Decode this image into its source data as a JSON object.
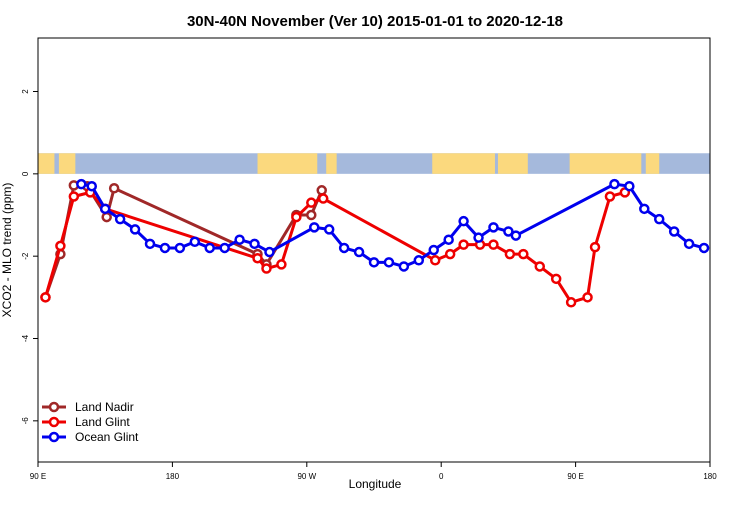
{
  "chart_data": {
    "type": "line",
    "title": "30N-40N November (Ver 10)   2015-01-01 to 2020-12-18",
    "xlabel": "Longitude",
    "ylabel": "XCO2 - MLO trend (ppm)",
    "xlim": [
      90,
      540
    ],
    "ylim": [
      -7,
      3.3
    ],
    "xticks": [
      {
        "value": 90,
        "label": "90 E"
      },
      {
        "value": 180,
        "label": "180"
      },
      {
        "value": 270,
        "label": "90 W"
      },
      {
        "value": 360,
        "label": "0"
      },
      {
        "value": 450,
        "label": "90 E"
      },
      {
        "value": 540,
        "label": "180"
      }
    ],
    "yticks": [
      {
        "value": -6,
        "label": "-6"
      },
      {
        "value": -4,
        "label": "-4"
      },
      {
        "value": -2,
        "label": "-2"
      },
      {
        "value": 0,
        "label": "0"
      },
      {
        "value": 2,
        "label": "2"
      }
    ],
    "land_ocean_strip": {
      "ymin": 0,
      "ymax": 0.5,
      "ocean_color": "#a5b9dc",
      "land_color": "#fbd97e",
      "land_ranges": [
        [
          90,
          101
        ],
        [
          104,
          115
        ],
        [
          237,
          277
        ],
        [
          283,
          290
        ],
        [
          354,
          396
        ],
        [
          398,
          418
        ],
        [
          446,
          494
        ],
        [
          497,
          506
        ]
      ]
    },
    "series": [
      {
        "name": "Land Nadir",
        "color": "#a02828",
        "x": [
          95,
          105,
          114,
          123,
          136,
          141,
          237,
          243,
          263,
          273,
          280
        ],
        "y": [
          -3.0,
          -1.95,
          -0.28,
          -0.3,
          -1.05,
          -0.35,
          -1.95,
          -2.2,
          -1.0,
          -1.0,
          -0.4
        ]
      },
      {
        "name": "Land Glint",
        "color": "#ee0000",
        "x": [
          95,
          105,
          114,
          125,
          135,
          237,
          243,
          253,
          263,
          273,
          281,
          356,
          366,
          375,
          386,
          395,
          406,
          415,
          426,
          437,
          447,
          458,
          463,
          473,
          483
        ],
        "y": [
          -3.0,
          -1.75,
          -0.55,
          -0.45,
          -0.85,
          -2.05,
          -2.3,
          -2.2,
          -1.05,
          -0.7,
          -0.6,
          -2.1,
          -1.95,
          -1.72,
          -1.72,
          -1.72,
          -1.95,
          -1.95,
          -2.25,
          -2.55,
          -3.12,
          -3.0,
          -1.78,
          -0.55,
          -0.45
        ]
      },
      {
        "name": "Ocean Glint",
        "color": "#0000ee",
        "x": [
          119,
          126,
          135,
          145,
          155,
          165,
          175,
          185,
          195,
          205,
          215,
          225,
          235,
          245,
          275,
          285,
          295,
          305,
          315,
          325,
          335,
          345,
          355,
          365,
          375,
          385,
          395,
          405,
          410,
          476,
          486,
          496,
          506,
          516,
          526,
          536
        ],
        "y": [
          -0.25,
          -0.3,
          -0.85,
          -1.1,
          -1.35,
          -1.7,
          -1.8,
          -1.8,
          -1.65,
          -1.8,
          -1.8,
          -1.6,
          -1.7,
          -1.9,
          -1.3,
          -1.35,
          -1.8,
          -1.9,
          -2.15,
          -2.15,
          -2.25,
          -2.1,
          -1.85,
          -1.6,
          -1.15,
          -1.55,
          -1.3,
          -1.4,
          -1.5,
          -0.25,
          -0.3,
          -0.85,
          -1.1,
          -1.4,
          -1.7,
          -1.8
        ]
      }
    ],
    "legend": {
      "position": "bottom-left",
      "entries": [
        "Land Nadir",
        "Land Glint",
        "Ocean Glint"
      ]
    }
  }
}
